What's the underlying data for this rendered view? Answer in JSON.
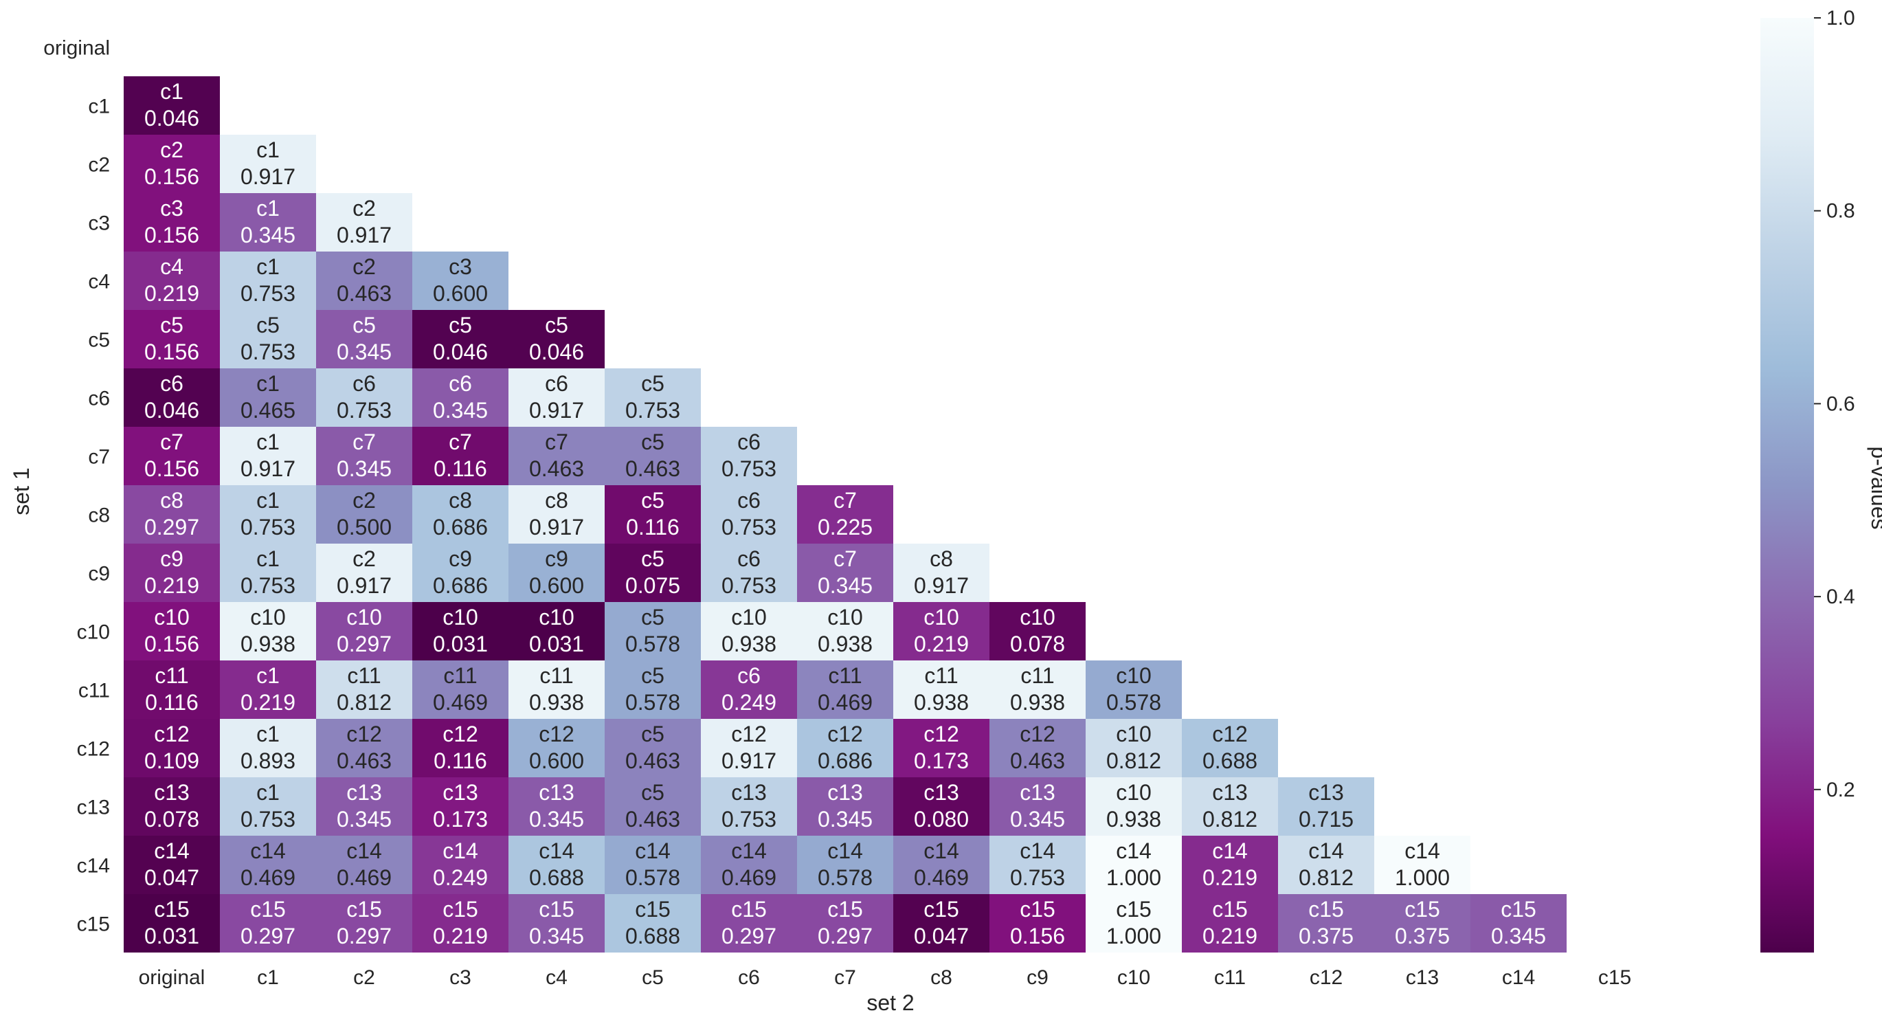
{
  "chart_data": {
    "type": "heatmap",
    "xlabel": "set 2",
    "ylabel": "set 1",
    "x_labels": [
      "original",
      "c1",
      "c2",
      "c3",
      "c4",
      "c5",
      "c6",
      "c7",
      "c8",
      "c9",
      "c10",
      "c11",
      "c12",
      "c13",
      "c14",
      "c15"
    ],
    "y_labels": [
      "original",
      "c1",
      "c2",
      "c3",
      "c4",
      "c5",
      "c6",
      "c7",
      "c8",
      "c9",
      "c10",
      "c11",
      "c12",
      "c13",
      "c14",
      "c15"
    ],
    "mask": "upper-triangle-and-diagonal",
    "rows": [
      [],
      [
        {
          "label": "c1",
          "value": 0.046
        }
      ],
      [
        {
          "label": "c2",
          "value": 0.156
        },
        {
          "label": "c1",
          "value": 0.917
        }
      ],
      [
        {
          "label": "c3",
          "value": 0.156
        },
        {
          "label": "c1",
          "value": 0.345
        },
        {
          "label": "c2",
          "value": 0.917
        }
      ],
      [
        {
          "label": "c4",
          "value": 0.219
        },
        {
          "label": "c1",
          "value": 0.753
        },
        {
          "label": "c2",
          "value": 0.463
        },
        {
          "label": "c3",
          "value": 0.6
        }
      ],
      [
        {
          "label": "c5",
          "value": 0.156
        },
        {
          "label": "c5",
          "value": 0.753
        },
        {
          "label": "c5",
          "value": 0.345
        },
        {
          "label": "c5",
          "value": 0.046
        },
        {
          "label": "c5",
          "value": 0.046
        }
      ],
      [
        {
          "label": "c6",
          "value": 0.046
        },
        {
          "label": "c1",
          "value": 0.465
        },
        {
          "label": "c6",
          "value": 0.753
        },
        {
          "label": "c6",
          "value": 0.345
        },
        {
          "label": "c6",
          "value": 0.917
        },
        {
          "label": "c5",
          "value": 0.753
        }
      ],
      [
        {
          "label": "c7",
          "value": 0.156
        },
        {
          "label": "c1",
          "value": 0.917
        },
        {
          "label": "c7",
          "value": 0.345
        },
        {
          "label": "c7",
          "value": 0.116
        },
        {
          "label": "c7",
          "value": 0.463
        },
        {
          "label": "c5",
          "value": 0.463
        },
        {
          "label": "c6",
          "value": 0.753
        }
      ],
      [
        {
          "label": "c8",
          "value": 0.297
        },
        {
          "label": "c1",
          "value": 0.753
        },
        {
          "label": "c2",
          "value": 0.5
        },
        {
          "label": "c8",
          "value": 0.686
        },
        {
          "label": "c8",
          "value": 0.917
        },
        {
          "label": "c5",
          "value": 0.116
        },
        {
          "label": "c6",
          "value": 0.753
        },
        {
          "label": "c7",
          "value": 0.225
        }
      ],
      [
        {
          "label": "c9",
          "value": 0.219
        },
        {
          "label": "c1",
          "value": 0.753
        },
        {
          "label": "c2",
          "value": 0.917
        },
        {
          "label": "c9",
          "value": 0.686
        },
        {
          "label": "c9",
          "value": 0.6
        },
        {
          "label": "c5",
          "value": 0.075
        },
        {
          "label": "c6",
          "value": 0.753
        },
        {
          "label": "c7",
          "value": 0.345
        },
        {
          "label": "c8",
          "value": 0.917
        }
      ],
      [
        {
          "label": "c10",
          "value": 0.156
        },
        {
          "label": "c10",
          "value": 0.938
        },
        {
          "label": "c10",
          "value": 0.297
        },
        {
          "label": "c10",
          "value": 0.031
        },
        {
          "label": "c10",
          "value": 0.031
        },
        {
          "label": "c5",
          "value": 0.578
        },
        {
          "label": "c10",
          "value": 0.938
        },
        {
          "label": "c10",
          "value": 0.938
        },
        {
          "label": "c10",
          "value": 0.219
        },
        {
          "label": "c10",
          "value": 0.078
        }
      ],
      [
        {
          "label": "c11",
          "value": 0.116
        },
        {
          "label": "c1",
          "value": 0.219
        },
        {
          "label": "c11",
          "value": 0.812
        },
        {
          "label": "c11",
          "value": 0.469
        },
        {
          "label": "c11",
          "value": 0.938
        },
        {
          "label": "c5",
          "value": 0.578
        },
        {
          "label": "c6",
          "value": 0.249
        },
        {
          "label": "c11",
          "value": 0.469
        },
        {
          "label": "c11",
          "value": 0.938
        },
        {
          "label": "c11",
          "value": 0.938
        },
        {
          "label": "c10",
          "value": 0.578
        }
      ],
      [
        {
          "label": "c12",
          "value": 0.109
        },
        {
          "label": "c1",
          "value": 0.893
        },
        {
          "label": "c12",
          "value": 0.463
        },
        {
          "label": "c12",
          "value": 0.116
        },
        {
          "label": "c12",
          "value": 0.6
        },
        {
          "label": "c5",
          "value": 0.463
        },
        {
          "label": "c12",
          "value": 0.917
        },
        {
          "label": "c12",
          "value": 0.686
        },
        {
          "label": "c12",
          "value": 0.173
        },
        {
          "label": "c12",
          "value": 0.463
        },
        {
          "label": "c10",
          "value": 0.812
        },
        {
          "label": "c12",
          "value": 0.688
        }
      ],
      [
        {
          "label": "c13",
          "value": 0.078
        },
        {
          "label": "c1",
          "value": 0.753
        },
        {
          "label": "c13",
          "value": 0.345
        },
        {
          "label": "c13",
          "value": 0.173
        },
        {
          "label": "c13",
          "value": 0.345
        },
        {
          "label": "c5",
          "value": 0.463
        },
        {
          "label": "c13",
          "value": 0.753
        },
        {
          "label": "c13",
          "value": 0.345
        },
        {
          "label": "c13",
          "value": 0.08
        },
        {
          "label": "c13",
          "value": 0.345
        },
        {
          "label": "c10",
          "value": 0.938
        },
        {
          "label": "c13",
          "value": 0.812
        },
        {
          "label": "c13",
          "value": 0.715
        }
      ],
      [
        {
          "label": "c14",
          "value": 0.047
        },
        {
          "label": "c14",
          "value": 0.469
        },
        {
          "label": "c14",
          "value": 0.469
        },
        {
          "label": "c14",
          "value": 0.249
        },
        {
          "label": "c14",
          "value": 0.688
        },
        {
          "label": "c14",
          "value": 0.578
        },
        {
          "label": "c14",
          "value": 0.469
        },
        {
          "label": "c14",
          "value": 0.578
        },
        {
          "label": "c14",
          "value": 0.469
        },
        {
          "label": "c14",
          "value": 0.753
        },
        {
          "label": "c14",
          "value": 1.0
        },
        {
          "label": "c14",
          "value": 0.219
        },
        {
          "label": "c14",
          "value": 0.812
        },
        {
          "label": "c14",
          "value": 1.0
        }
      ],
      [
        {
          "label": "c15",
          "value": 0.031
        },
        {
          "label": "c15",
          "value": 0.297
        },
        {
          "label": "c15",
          "value": 0.297
        },
        {
          "label": "c15",
          "value": 0.219
        },
        {
          "label": "c15",
          "value": 0.345
        },
        {
          "label": "c15",
          "value": 0.688
        },
        {
          "label": "c15",
          "value": 0.297
        },
        {
          "label": "c15",
          "value": 0.297
        },
        {
          "label": "c15",
          "value": 0.047
        },
        {
          "label": "c15",
          "value": 0.156
        },
        {
          "label": "c15",
          "value": 1.0
        },
        {
          "label": "c15",
          "value": 0.219
        },
        {
          "label": "c15",
          "value": 0.375
        },
        {
          "label": "c15",
          "value": 0.375
        },
        {
          "label": "c15",
          "value": 0.345
        }
      ]
    ],
    "colorbar": {
      "label": "p-values",
      "range": [
        0.031,
        1.0
      ],
      "ticks": [
        0.2,
        0.4,
        0.6,
        0.8,
        1.0
      ],
      "tick_labels": [
        "0.2",
        "0.4",
        "0.6",
        "0.8",
        "1.0"
      ],
      "colormap": "BuPu_r",
      "colors": [
        "#4d004b",
        "#810f7c",
        "#88419d",
        "#8c6bb1",
        "#8c96c6",
        "#9ebcda",
        "#bfd3e6",
        "#e0ecf4",
        "#f7fcfd"
      ]
    }
  }
}
